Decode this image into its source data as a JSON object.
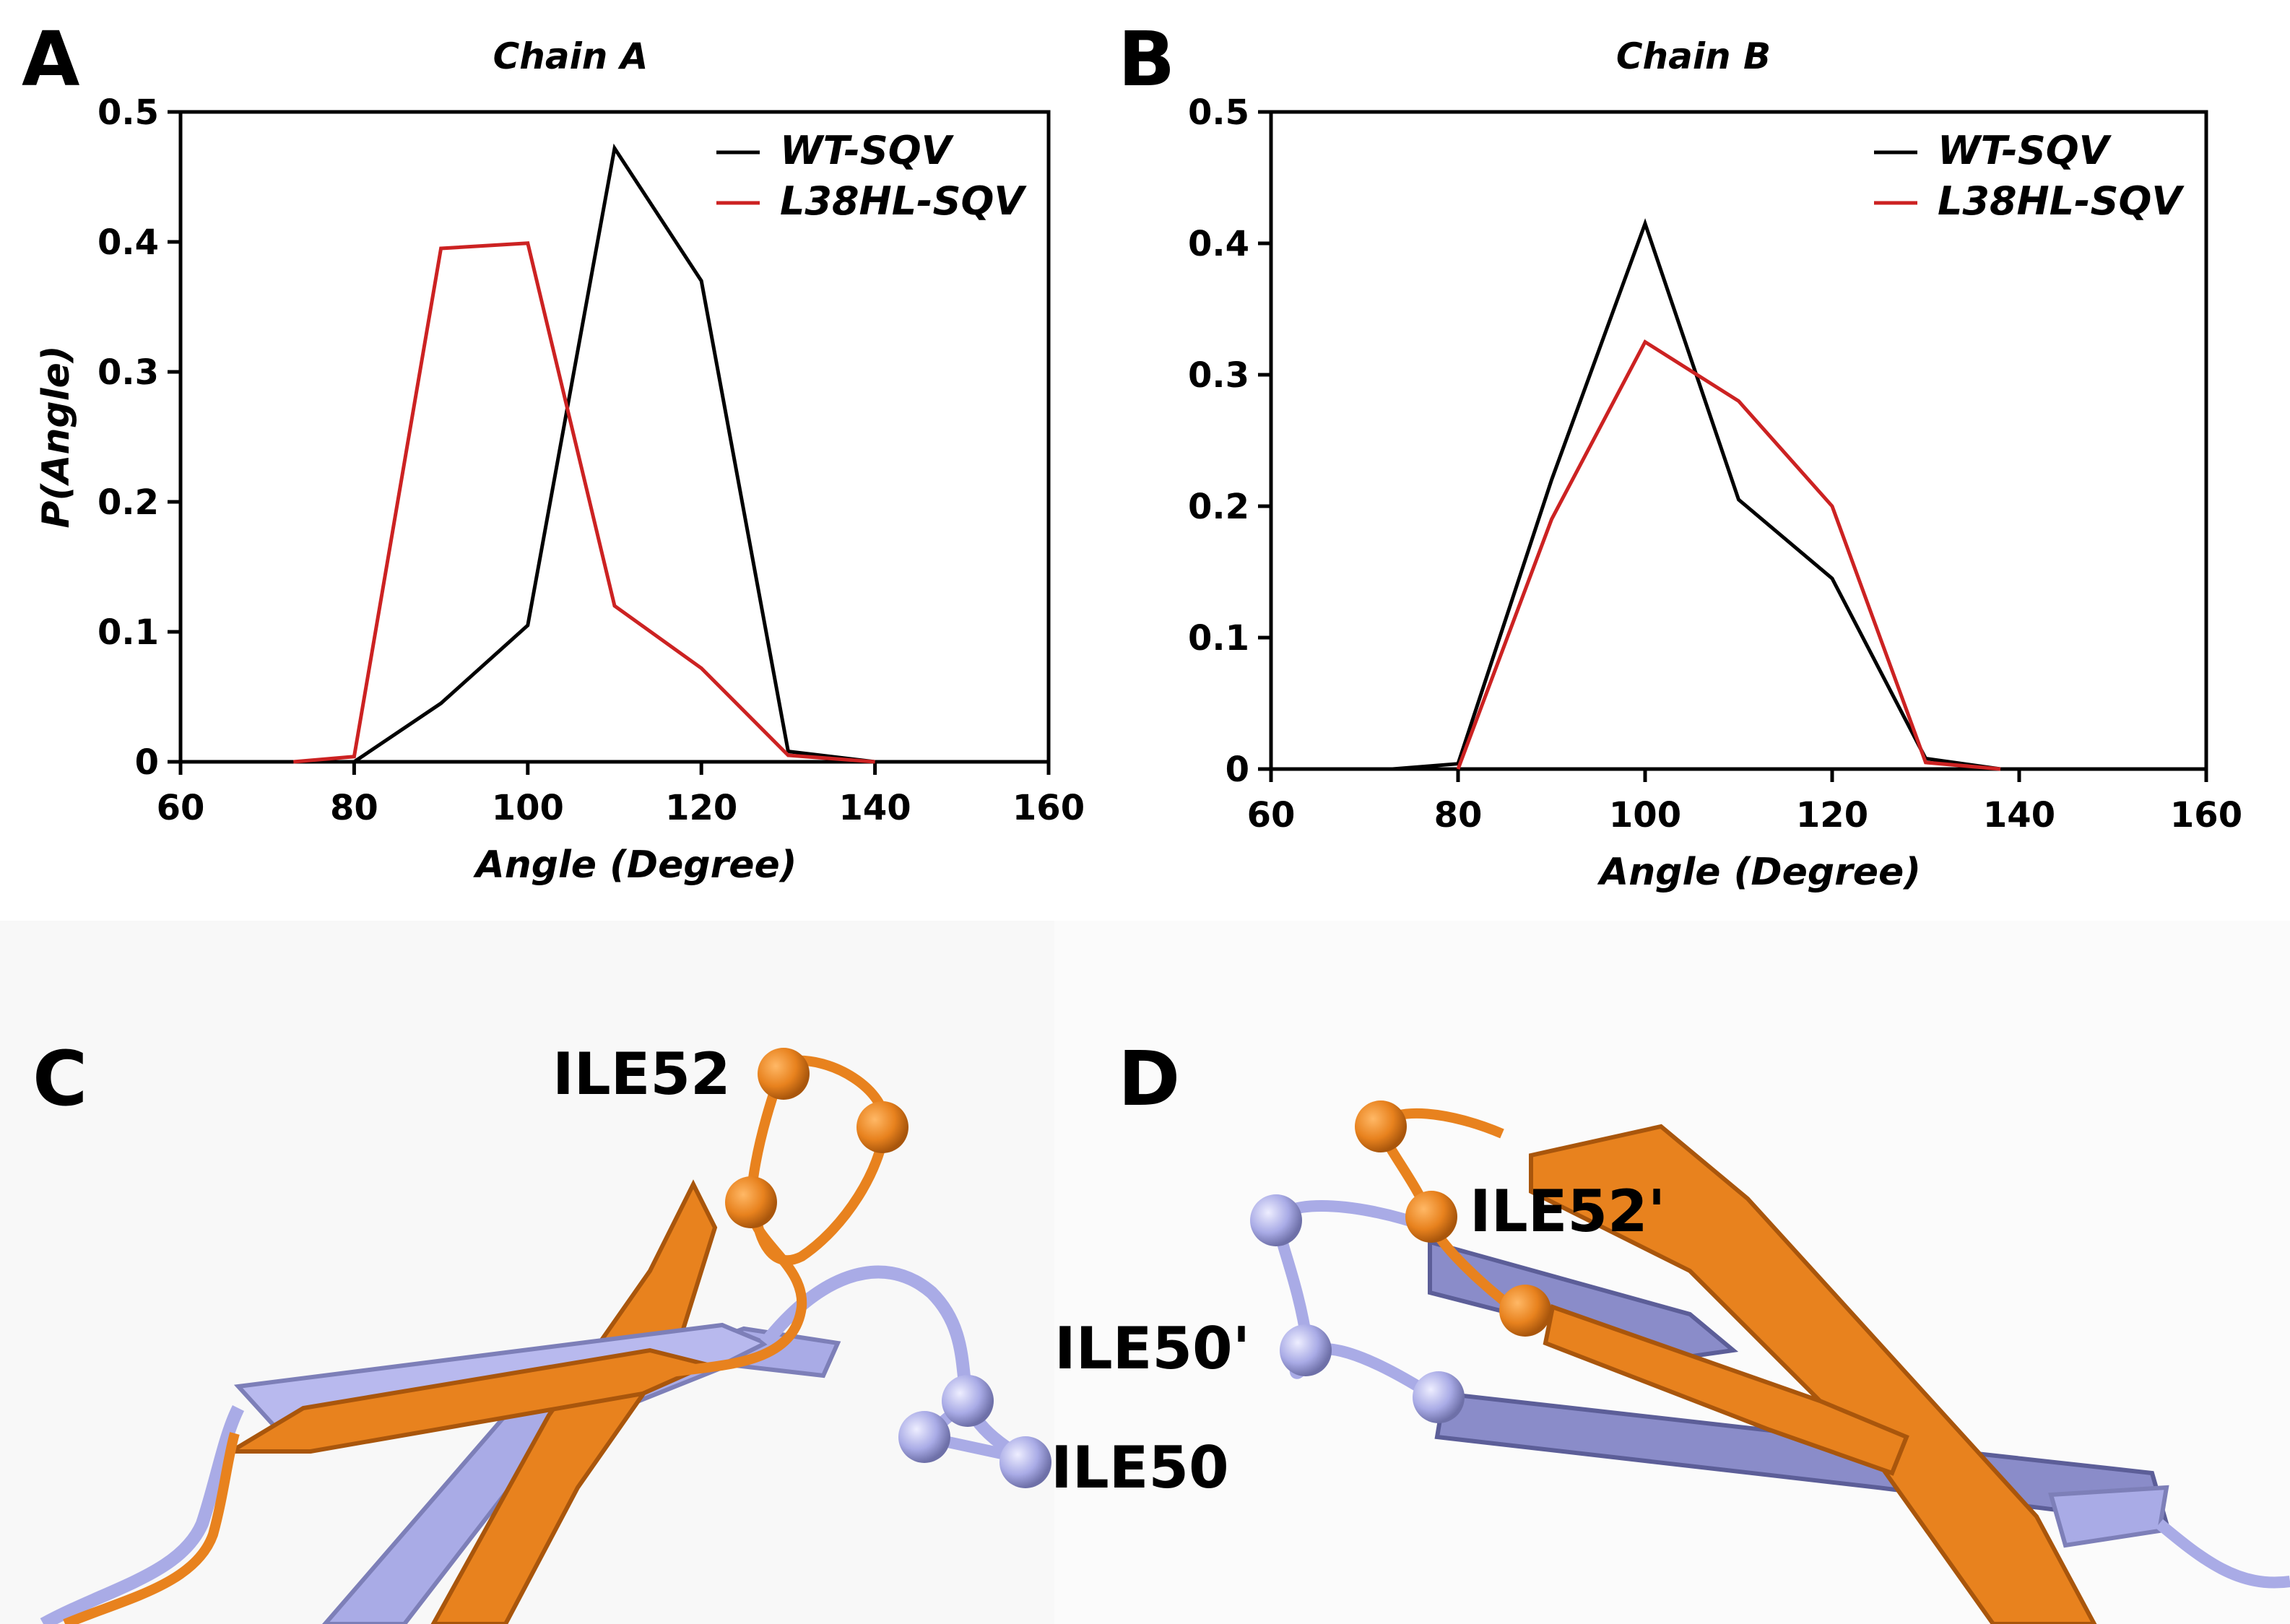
{
  "panels": {
    "a": "A",
    "b": "B",
    "c": "C",
    "d": "D"
  },
  "chart_data": [
    {
      "type": "line",
      "title": "Chain A",
      "xlabel": "Angle (Degree)",
      "ylabel": "P(Angle)",
      "xlim": [
        60,
        160
      ],
      "ylim": [
        0,
        0.5
      ],
      "xticks": [
        60,
        80,
        100,
        120,
        140,
        160
      ],
      "yticks": [
        0,
        0.1,
        0.2,
        0.3,
        0.4,
        0.5
      ],
      "ytick_labels": [
        "0",
        "0.1",
        "0.2",
        "0.3",
        "0.4",
        "0.5"
      ],
      "legend_position": "top-right",
      "series": [
        {
          "name": "WT-SQV",
          "color": "#000000",
          "x": [
            80,
            90,
            100,
            110,
            120,
            130,
            140
          ],
          "y": [
            0.0,
            0.045,
            0.105,
            0.472,
            0.37,
            0.008,
            0.0
          ]
        },
        {
          "name": "L38HL-SQV",
          "color": "#cc2222",
          "x": [
            73,
            80,
            90,
            100,
            110,
            120,
            130,
            140
          ],
          "y": [
            0.0,
            0.004,
            0.395,
            0.399,
            0.12,
            0.072,
            0.005,
            0.0
          ]
        }
      ]
    },
    {
      "type": "line",
      "title": "Chain B",
      "xlabel": "Angle (Degree)",
      "ylabel": "",
      "xlim": [
        60,
        160
      ],
      "ylim": [
        0,
        0.5
      ],
      "xticks": [
        60,
        80,
        100,
        120,
        140,
        160
      ],
      "yticks": [
        0,
        0.1,
        0.2,
        0.3,
        0.4,
        0.5
      ],
      "ytick_labels": [
        "0",
        "0.1",
        "0.2",
        "0.3",
        "0.4",
        "0.5"
      ],
      "legend_position": "top-right",
      "series": [
        {
          "name": "WT-SQV",
          "color": "#000000",
          "x": [
            73,
            80,
            90,
            100,
            110,
            120,
            130,
            138
          ],
          "y": [
            0.0,
            0.004,
            0.22,
            0.415,
            0.205,
            0.145,
            0.008,
            0.0
          ]
        },
        {
          "name": "L38HL-SQV",
          "color": "#cc2222",
          "x": [
            80,
            90,
            100,
            110,
            120,
            130,
            138
          ],
          "y": [
            0.0,
            0.19,
            0.325,
            0.28,
            0.2,
            0.005,
            0.0
          ]
        }
      ]
    }
  ],
  "structure_labels": {
    "c_ile52": "ILE52",
    "c_ile50": "ILE50",
    "d_ile52p": "ILE52'",
    "d_ile50p": "ILE50'"
  },
  "colors": {
    "orange": "#e8821e",
    "lavender": "#a9abe6",
    "slate": "#7d7fb8"
  }
}
